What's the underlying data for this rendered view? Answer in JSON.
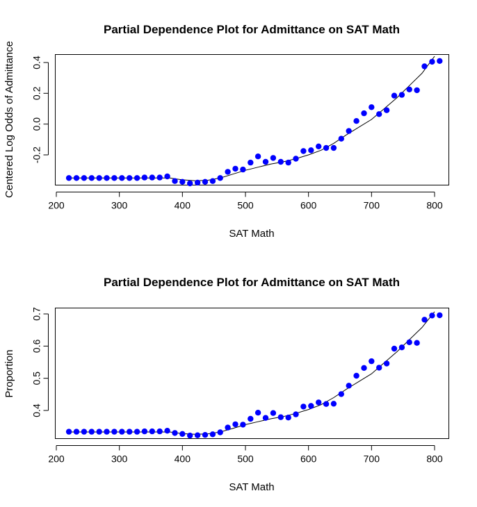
{
  "colors": {
    "points": "#0000ff",
    "line": "#000000",
    "axis": "#000000"
  },
  "chart_data": [
    {
      "type": "scatter",
      "title": "Partial Dependence Plot for Admittance on SAT Math",
      "xlabel": "SAT Math",
      "ylabel": "Centered Log Odds of Admittance",
      "xlim": [
        200,
        800
      ],
      "ylim": [
        -0.38,
        0.45
      ],
      "xticks": [
        200,
        300,
        400,
        500,
        600,
        700,
        800
      ],
      "yticks": [
        0.4,
        0.2,
        0.0,
        -0.2
      ],
      "ytick_labels": [
        "0.4",
        "0.2",
        "0.0",
        "-0.2"
      ],
      "grid": false,
      "x": [
        220,
        232,
        244,
        256,
        268,
        280,
        292,
        304,
        316,
        328,
        340,
        352,
        364,
        376,
        388,
        400,
        412,
        424,
        436,
        448,
        460,
        472,
        484,
        496,
        508,
        520,
        532,
        544,
        556,
        568,
        580,
        592,
        604,
        616,
        628,
        640,
        652,
        664,
        676,
        688,
        700,
        712,
        724,
        736,
        748,
        760,
        772,
        784,
        796,
        808
      ],
      "y": [
        -0.35,
        -0.35,
        -0.35,
        -0.35,
        -0.35,
        -0.35,
        -0.35,
        -0.35,
        -0.35,
        -0.35,
        -0.347,
        -0.347,
        -0.347,
        -0.34,
        -0.37,
        -0.375,
        -0.385,
        -0.38,
        -0.375,
        -0.37,
        -0.35,
        -0.31,
        -0.29,
        -0.295,
        -0.25,
        -0.21,
        -0.245,
        -0.22,
        -0.245,
        -0.25,
        -0.225,
        -0.175,
        -0.17,
        -0.145,
        -0.155,
        -0.155,
        -0.095,
        -0.045,
        0.02,
        0.07,
        0.11,
        0.065,
        0.09,
        0.185,
        0.19,
        0.225,
        0.22,
        0.375,
        0.405,
        0.41
      ],
      "trend_x": [
        220,
        380,
        400,
        420,
        440,
        460,
        480,
        500,
        520,
        540,
        560,
        580,
        600,
        620,
        640,
        660,
        680,
        700,
        720,
        740,
        760,
        780,
        800
      ],
      "trend_y": [
        -0.35,
        -0.35,
        -0.362,
        -0.368,
        -0.365,
        -0.35,
        -0.325,
        -0.3,
        -0.28,
        -0.26,
        -0.245,
        -0.225,
        -0.2,
        -0.17,
        -0.125,
        -0.07,
        -0.02,
        0.03,
        0.1,
        0.17,
        0.25,
        0.33,
        0.44
      ]
    },
    {
      "type": "scatter",
      "title": "Partial Dependence Plot for Admittance on SAT Math",
      "xlabel": "SAT Math",
      "ylabel": "Proportion",
      "xlim": [
        200,
        800
      ],
      "ylim": [
        0.312,
        0.708
      ],
      "xticks": [
        200,
        300,
        400,
        500,
        600,
        700,
        800
      ],
      "yticks": [
        0.7,
        0.6,
        0.5,
        0.4
      ],
      "ytick_labels": [
        "0.7",
        "0.6",
        "0.5",
        "0.4"
      ],
      "grid": false,
      "x": [
        220,
        232,
        244,
        256,
        268,
        280,
        292,
        304,
        316,
        328,
        340,
        352,
        364,
        376,
        388,
        400,
        412,
        424,
        436,
        448,
        460,
        472,
        484,
        496,
        508,
        520,
        532,
        544,
        556,
        568,
        580,
        592,
        604,
        616,
        628,
        640,
        652,
        664,
        676,
        688,
        700,
        712,
        724,
        736,
        748,
        760,
        772,
        784,
        796,
        808
      ],
      "y": [
        0.334,
        0.334,
        0.334,
        0.334,
        0.334,
        0.334,
        0.334,
        0.334,
        0.334,
        0.334,
        0.335,
        0.335,
        0.335,
        0.337,
        0.33,
        0.327,
        0.322,
        0.323,
        0.324,
        0.326,
        0.332,
        0.347,
        0.357,
        0.356,
        0.374,
        0.393,
        0.377,
        0.392,
        0.379,
        0.378,
        0.388,
        0.412,
        0.414,
        0.425,
        0.42,
        0.421,
        0.451,
        0.477,
        0.508,
        0.532,
        0.553,
        0.533,
        0.546,
        0.592,
        0.596,
        0.612,
        0.61,
        0.682,
        0.695,
        0.696
      ],
      "trend_x": [
        220,
        380,
        400,
        420,
        440,
        460,
        480,
        500,
        520,
        540,
        560,
        580,
        600,
        620,
        640,
        660,
        680,
        700,
        720,
        740,
        760,
        780,
        800
      ],
      "trend_y": [
        0.333,
        0.333,
        0.328,
        0.326,
        0.327,
        0.333,
        0.344,
        0.356,
        0.365,
        0.374,
        0.381,
        0.391,
        0.403,
        0.418,
        0.44,
        0.466,
        0.49,
        0.514,
        0.548,
        0.582,
        0.62,
        0.658,
        0.707
      ]
    }
  ]
}
